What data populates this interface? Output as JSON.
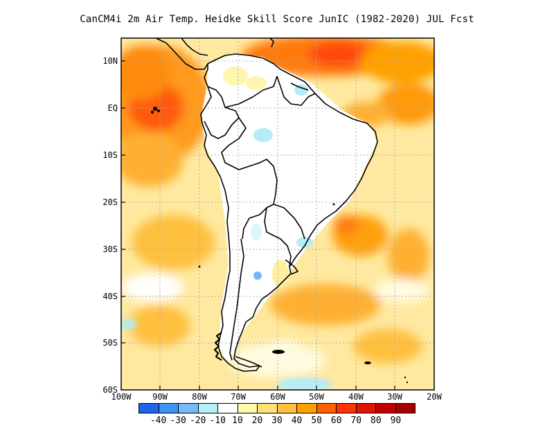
{
  "title": "CanCM4i  2m Air Temp. Heidke Skill Score JunIC (1982-2020) JUL Fcst",
  "lat_labels": [
    "10N",
    "EQ",
    "10S",
    "20S",
    "30S",
    "40S",
    "50S",
    "60S"
  ],
  "lon_labels": [
    "100W",
    "90W",
    "80W",
    "70W",
    "60W",
    "50W",
    "40W",
    "30W",
    "20W"
  ],
  "colorbar": {
    "colors": [
      "#1e64f0",
      "#3c96f5",
      "#78b9fa",
      "#b4f0fa",
      "#ffffff",
      "#fffaaa",
      "#ffe178",
      "#ffc03c",
      "#ffa000",
      "#ff6000",
      "#ff3200",
      "#e11400",
      "#c00000",
      "#a50000"
    ],
    "labels": [
      "-40",
      "-30",
      "-20",
      "-10",
      "10",
      "20",
      "30",
      "40",
      "50",
      "60",
      "70",
      "80",
      "90"
    ]
  },
  "map": {
    "lat_range": [
      -60,
      15
    ],
    "lon_range": [
      -100,
      -20
    ],
    "grid": "dotted"
  }
}
